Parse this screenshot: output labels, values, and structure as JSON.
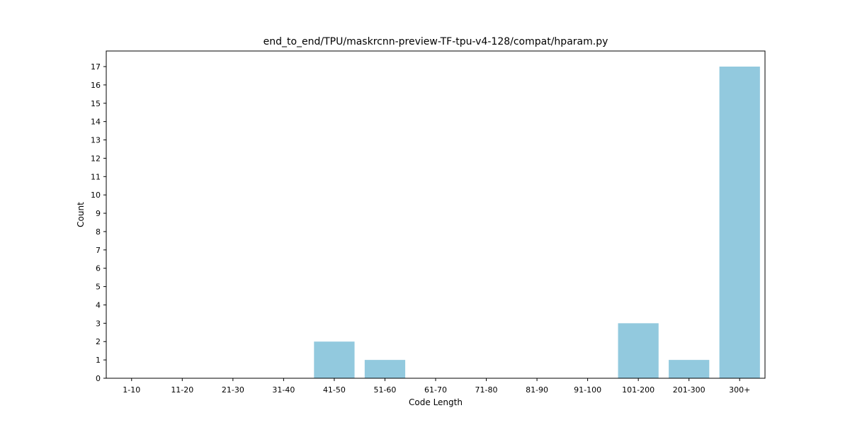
{
  "chart_data": {
    "type": "bar",
    "title": "end_to_end/TPU/maskrcnn-preview-TF-tpu-v4-128/compat/hparam.py",
    "xlabel": "Code Length",
    "ylabel": "Count",
    "categories": [
      "1-10",
      "11-20",
      "21-30",
      "31-40",
      "41-50",
      "51-60",
      "61-70",
      "71-80",
      "81-90",
      "91-100",
      "101-200",
      "201-300",
      "300+"
    ],
    "values": [
      0,
      0,
      0,
      0,
      2,
      1,
      0,
      0,
      0,
      0,
      3,
      1,
      17
    ],
    "ylim": [
      0,
      17.85
    ],
    "yticks": [
      0,
      1,
      2,
      3,
      4,
      5,
      6,
      7,
      8,
      9,
      10,
      11,
      12,
      13,
      14,
      15,
      16,
      17
    ],
    "grid": false,
    "legend": "none",
    "bar_color": "#92c9de"
  }
}
